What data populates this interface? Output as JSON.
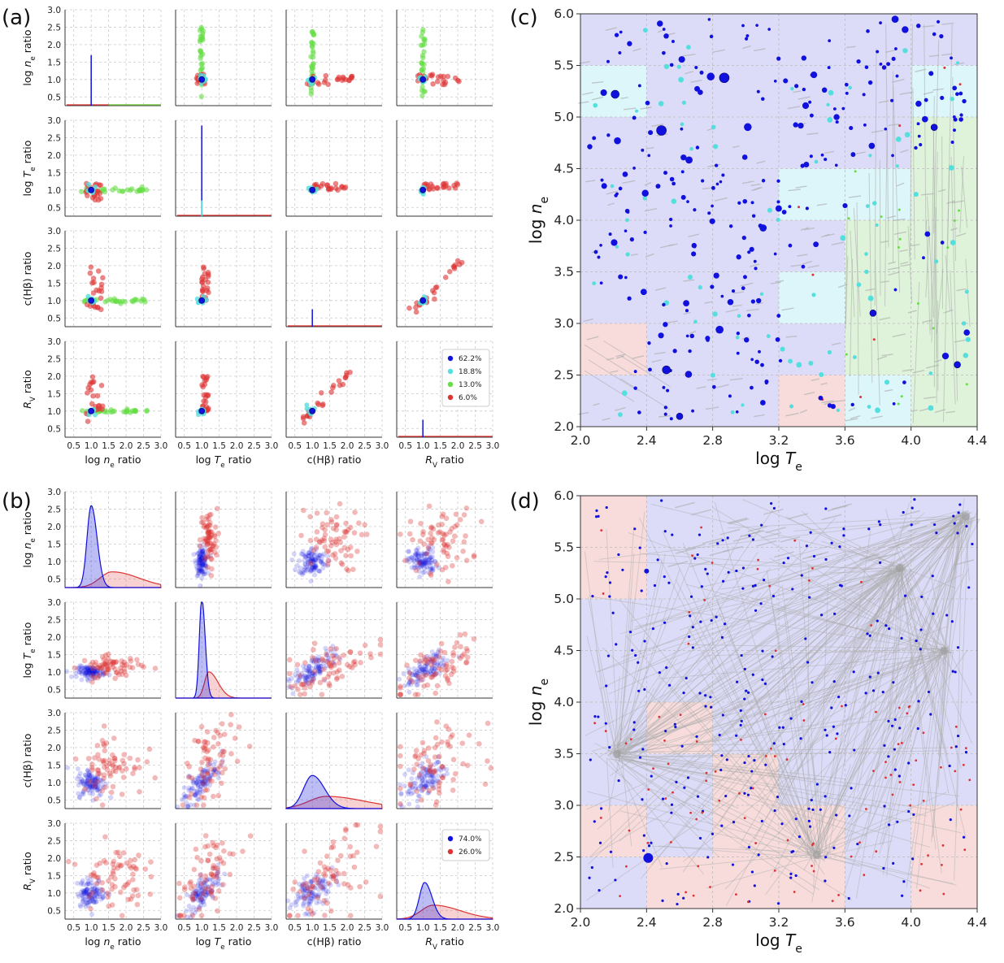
{
  "panel_labels": {
    "a": "(a)",
    "b": "(b)",
    "c": "(c)",
    "d": "(d)"
  },
  "grid_variables": [
    "log n_e ratio",
    "log T_e ratio",
    "c(Hβ) ratio",
    "R_V ratio"
  ],
  "grid_xlabels": {
    "ne_prefix": "log ",
    "ne_sym": "n",
    "ne_sub": "e",
    "ne_suffix": " ratio",
    "te_prefix": "log ",
    "te_sym": "T",
    "te_sub": "e",
    "te_suffix": " ratio",
    "chb_main": "c(Hβ) ratio",
    "rv_sym": "R",
    "rv_sub": "V",
    "rv_suffix": " ratio"
  },
  "grid_ticks": [
    "0.5",
    "1.0",
    "1.5",
    "2.0",
    "2.5",
    "3.0"
  ],
  "ne_te_axis": {
    "xticks": [
      "2.0",
      "2.4",
      "2.8",
      "3.2",
      "3.6",
      "4.0",
      "4.4"
    ],
    "yticks": [
      "2.0",
      "2.5",
      "3.0",
      "3.5",
      "4.0",
      "4.5",
      "5.0",
      "5.5",
      "6.0"
    ],
    "xlabel_prefix": "log ",
    "xlabel_sym": "T",
    "xlabel_sub": "e",
    "ylabel_prefix": "log ",
    "ylabel_sym": "n",
    "ylabel_sub": "e"
  },
  "colors": {
    "blue": "#1111dd",
    "cyan": "#55dede",
    "green": "#66dd44",
    "red": "#dd3333",
    "bg_blue": "#dcdcf8",
    "bg_cyan": "#dcf6fa",
    "bg_green": "#dff3da",
    "bg_red": "#f8dcdc",
    "arrow": "#aaaaaa"
  },
  "chart_data": [
    {
      "type": "scatter",
      "panel": "(a)",
      "description_kind": "pair-plot 4x4",
      "variables": [
        "log n_e ratio",
        "log T_e ratio",
        "c(Hβ) ratio",
        "R_V ratio"
      ],
      "xlim": [
        0.25,
        3.0
      ],
      "ylim": [
        0.25,
        3.0
      ],
      "legend": [
        {
          "label": "62.2%",
          "color": "#1111dd"
        },
        {
          "label": "18.8%",
          "color": "#55dede"
        },
        {
          "label": "13.0%",
          "color": "#66dd44"
        },
        {
          "label": "6.0%",
          "color": "#dd3333"
        }
      ],
      "legend_placement": "bottom-right panel, right",
      "diagonal_lines": [
        {
          "var": "log n_e ratio",
          "x": 1.0,
          "top": 1.7,
          "color": "#1111dd"
        },
        {
          "var": "log T_e ratio",
          "x": 1.0,
          "top": 2.85,
          "color": "#1111dd"
        },
        {
          "var": "c(Hβ) ratio",
          "x": 1.0,
          "top": 0.75,
          "color": "#1111dd"
        },
        {
          "var": "R_V ratio",
          "x": 1.0,
          "top": 0.75,
          "color": "#1111dd"
        }
      ]
    },
    {
      "type": "scatter",
      "panel": "(b)",
      "description_kind": "pair-plot 4x4 with KDE diagonal",
      "variables": [
        "log n_e ratio",
        "log T_e ratio",
        "c(Hβ) ratio",
        "R_V ratio"
      ],
      "xlim": [
        0.25,
        3.0
      ],
      "ylim": [
        0.25,
        3.0
      ],
      "legend": [
        {
          "label": "74.0%",
          "color": "#1111dd"
        },
        {
          "label": "26.0%",
          "color": "#dd3333"
        }
      ],
      "legend_placement": "bottom-right panel, top-right",
      "kde_blue_peak": [
        {
          "var": "log n_e ratio",
          "center": 1.0,
          "peak": 2.35,
          "width": 0.12
        },
        {
          "var": "log T_e ratio",
          "center": 1.0,
          "peak": 2.85,
          "width": 0.07
        },
        {
          "var": "c(Hβ) ratio",
          "center": 1.0,
          "peak": 0.95,
          "width": 0.25
        },
        {
          "var": "R_V ratio",
          "center": 1.05,
          "peak": 1.05,
          "width": 0.15
        }
      ],
      "kde_red_peak": [
        {
          "var": "log n_e ratio",
          "center": 1.6,
          "peak": 0.45,
          "width": 0.35
        },
        {
          "var": "log T_e ratio",
          "center": 1.2,
          "peak": 0.75,
          "width": 0.12
        },
        {
          "var": "c(Hβ) ratio",
          "center": 1.4,
          "peak": 0.35,
          "width": 0.5
        },
        {
          "var": "R_V ratio",
          "center": 1.3,
          "peak": 0.4,
          "width": 0.35
        }
      ]
    },
    {
      "type": "scatter",
      "panel": "(c)",
      "xlabel": "log T_e",
      "ylabel": "log n_e",
      "xlim": [
        2.0,
        4.4
      ],
      "ylim": [
        2.0,
        6.0
      ],
      "background_cells": [
        {
          "x": [
            2.0,
            2.4
          ],
          "y": [
            5.0,
            5.5
          ],
          "color": "cyan"
        },
        {
          "x": [
            4.0,
            4.4
          ],
          "y": [
            5.0,
            5.5
          ],
          "color": "cyan"
        },
        {
          "x": [
            4.0,
            4.4
          ],
          "y": [
            4.5,
            5.0
          ],
          "color": "green"
        },
        {
          "x": [
            3.2,
            3.6
          ],
          "y": [
            4.0,
            4.5
          ],
          "color": "cyan"
        },
        {
          "x": [
            3.6,
            4.0
          ],
          "y": [
            4.0,
            4.5
          ],
          "color": "cyan"
        },
        {
          "x": [
            4.0,
            4.4
          ],
          "y": [
            4.0,
            4.5
          ],
          "color": "green"
        },
        {
          "x": [
            3.6,
            4.4
          ],
          "y": [
            3.5,
            4.0
          ],
          "color": "green"
        },
        {
          "x": [
            3.2,
            3.6
          ],
          "y": [
            3.0,
            3.5
          ],
          "color": "cyan"
        },
        {
          "x": [
            3.6,
            4.0
          ],
          "y": [
            3.0,
            3.5
          ],
          "color": "green"
        },
        {
          "x": [
            4.0,
            4.4
          ],
          "y": [
            3.0,
            3.5
          ],
          "color": "green"
        },
        {
          "x": [
            2.0,
            2.4
          ],
          "y": [
            2.5,
            3.0
          ],
          "color": "red"
        },
        {
          "x": [
            3.6,
            4.4
          ],
          "y": [
            2.5,
            3.0
          ],
          "color": "green"
        },
        {
          "x": [
            3.2,
            3.6
          ],
          "y": [
            2.0,
            2.5
          ],
          "color": "red"
        },
        {
          "x": [
            3.6,
            4.0
          ],
          "y": [
            2.0,
            2.5
          ],
          "color": "cyan"
        },
        {
          "x": [
            4.0,
            4.4
          ],
          "y": [
            2.0,
            2.5
          ],
          "color": "green"
        }
      ],
      "highlighted_points": [
        {
          "x": 2.87,
          "y": 5.38,
          "size": 6
        },
        {
          "x": 2.21,
          "y": 5.22,
          "size": 5
        },
        {
          "x": 2.49,
          "y": 4.87,
          "size": 6
        },
        {
          "x": 4.14,
          "y": 4.9,
          "size": 4
        },
        {
          "x": 3.77,
          "y": 3.1,
          "size": 4
        },
        {
          "x": 4.28,
          "y": 2.6,
          "size": 4
        },
        {
          "x": 2.52,
          "y": 2.55,
          "size": 5
        },
        {
          "x": 2.6,
          "y": 2.1,
          "size": 4
        }
      ]
    },
    {
      "type": "scatter",
      "panel": "(d)",
      "xlabel": "log T_e",
      "ylabel": "log n_e",
      "xlim": [
        2.0,
        4.4
      ],
      "ylim": [
        2.0,
        6.0
      ],
      "background_cells": [
        {
          "x": [
            2.0,
            2.4
          ],
          "y": [
            5.0,
            6.0
          ],
          "color": "red"
        },
        {
          "x": [
            2.4,
            2.8
          ],
          "y": [
            3.5,
            4.0
          ],
          "color": "red"
        },
        {
          "x": [
            2.0,
            2.4
          ],
          "y": [
            2.5,
            3.0
          ],
          "color": "red"
        },
        {
          "x": [
            2.8,
            3.2
          ],
          "y": [
            2.0,
            3.5
          ],
          "color": "red"
        },
        {
          "x": [
            2.4,
            2.8
          ],
          "y": [
            2.0,
            2.5
          ],
          "color": "red"
        },
        {
          "x": [
            3.2,
            3.6
          ],
          "y": [
            2.0,
            3.0
          ],
          "color": "red"
        },
        {
          "x": [
            4.0,
            4.4
          ],
          "y": [
            2.0,
            3.0
          ],
          "color": "red"
        }
      ],
      "hubs": [
        {
          "x": 2.22,
          "y": 3.5
        },
        {
          "x": 3.43,
          "y": 2.52
        },
        {
          "x": 4.2,
          "y": 4.5
        },
        {
          "x": 4.33,
          "y": 5.8
        },
        {
          "x": 3.93,
          "y": 5.3
        }
      ],
      "highlighted_points": [
        {
          "x": 2.4,
          "y": 5.27,
          "size": 3
        },
        {
          "x": 2.41,
          "y": 2.49,
          "size": 6
        }
      ]
    }
  ]
}
